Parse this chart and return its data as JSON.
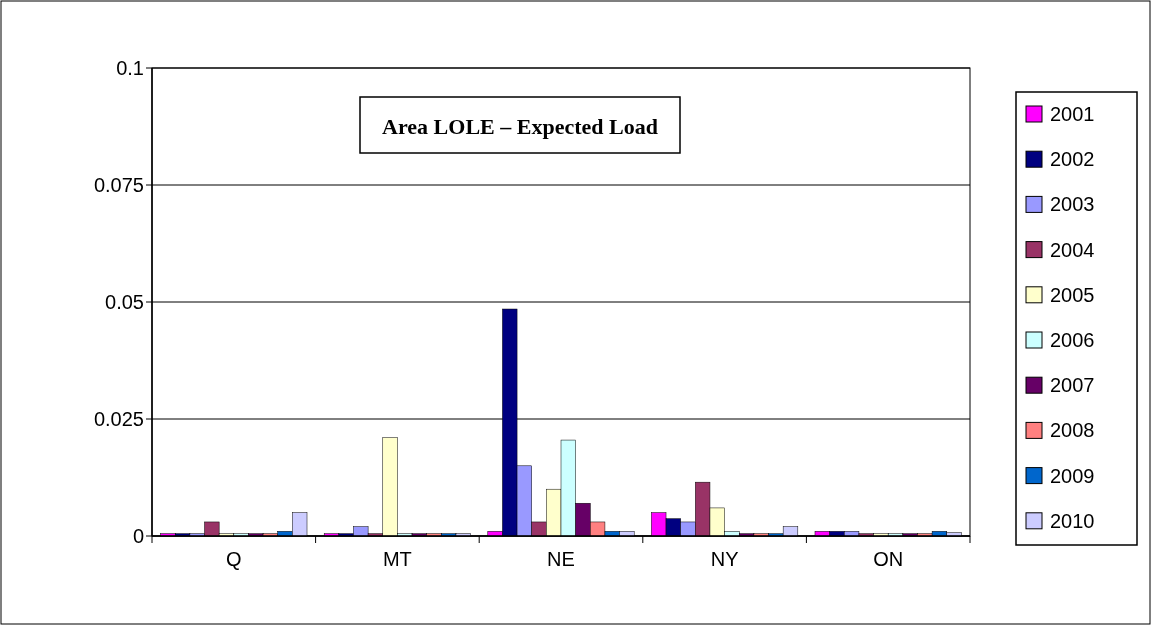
{
  "chart_data": {
    "type": "bar",
    "title": "Area LOLE – Expected Load",
    "categories": [
      "Q",
      "MT",
      "NE",
      "NY",
      "ON"
    ],
    "series": [
      {
        "name": "2001",
        "color": "#ff00ff",
        "values": [
          0.0005,
          0.0005,
          0.001,
          0.005,
          0.001
        ]
      },
      {
        "name": "2002",
        "color": "#000080",
        "values": [
          0.0005,
          0.0005,
          0.0485,
          0.0037,
          0.001
        ]
      },
      {
        "name": "2003",
        "color": "#9999ff",
        "values": [
          0.0005,
          0.002,
          0.015,
          0.003,
          0.001
        ]
      },
      {
        "name": "2004",
        "color": "#993366",
        "values": [
          0.003,
          0.0005,
          0.003,
          0.0115,
          0.0005
        ]
      },
      {
        "name": "2005",
        "color": "#ffffcc",
        "values": [
          0.0005,
          0.021,
          0.01,
          0.006,
          0.0005
        ]
      },
      {
        "name": "2006",
        "color": "#ccffff",
        "values": [
          0.0005,
          0.0005,
          0.0205,
          0.001,
          0.0005
        ]
      },
      {
        "name": "2007",
        "color": "#660066",
        "values": [
          0.0005,
          0.0005,
          0.007,
          0.0005,
          0.0005
        ]
      },
      {
        "name": "2008",
        "color": "#ff8080",
        "values": [
          0.0005,
          0.0005,
          0.003,
          0.0005,
          0.0005
        ]
      },
      {
        "name": "2009",
        "color": "#0066cc",
        "values": [
          0.001,
          0.0005,
          0.001,
          0.0005,
          0.001
        ]
      },
      {
        "name": "2010",
        "color": "#ccccff",
        "values": [
          0.005,
          0.0005,
          0.001,
          0.002,
          0.0007
        ]
      }
    ],
    "ylim": [
      0,
      0.1
    ],
    "yticks": [
      0,
      0.025,
      0.05,
      0.075,
      0.1
    ],
    "grid": "y",
    "legend": "right"
  }
}
